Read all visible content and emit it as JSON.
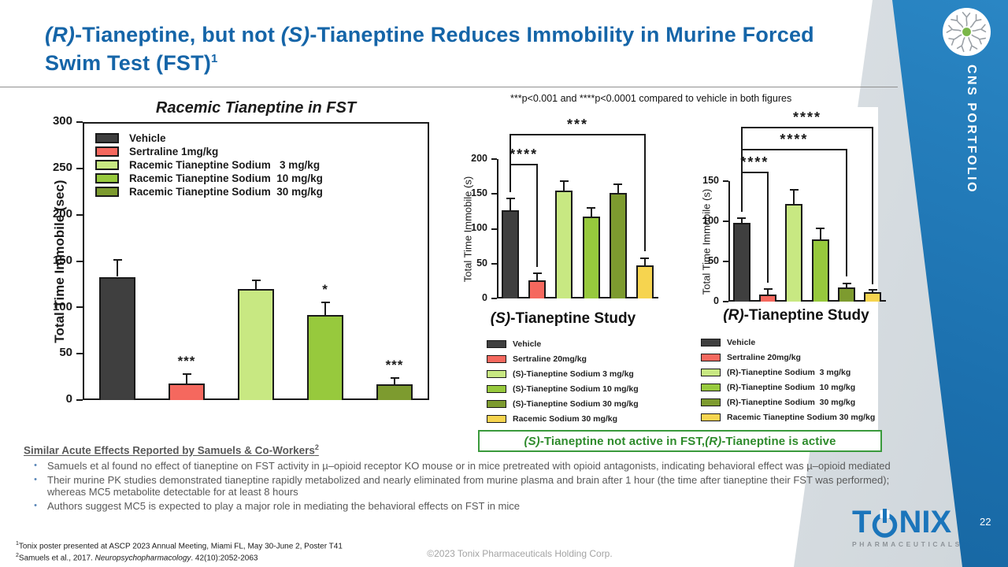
{
  "header": {
    "title_p1": "(R)",
    "title_p2": "-Tianeptine, but not ",
    "title_p3": "(S)",
    "title_p4": "-Tianeptine Reduces Immobility in Murine Forced Swim Test (FST)",
    "title_sup": "1"
  },
  "sidebar": {
    "label": "CNS PORTFOLIO",
    "page": "22"
  },
  "note": "***p<0.001 and ****p<0.0001 compared to vehicle in both figures",
  "conclusion": {
    "p1": "(S)",
    "p2": "-Tianeptine not active in FST, ",
    "p3": "(R)",
    "p4": "-Tianeptine is active"
  },
  "findings": {
    "heading": "Similar Acute Effects Reported by Samuels & Co-Workers",
    "heading_sup": "2",
    "bullets": [
      "Samuels et al found no effect of tianeptine on FST activity in µ–opioid receptor KO mouse or in mice pretreated with opioid antagonists, indicating behavioral effect was µ–opioid mediated",
      "Their murine PK studies demonstrated tianeptine rapidly metabolized and nearly eliminated from murine plasma and brain after 1 hour (the time after tianeptine their FST was performed); whereas MC5 metabolite detectable for at least 8 hours",
      "Authors suggest MC5 is expected to play a major role in mediating the behavioral effects on FST in mice"
    ]
  },
  "footnotes": {
    "sup1": "1",
    "line1": "Tonix poster presented at ASCP 2023 Annual Meeting, Miami FL, May 30-June 2, Poster T41",
    "sup2": "2",
    "line2_pre": "Samuels et al., 2017. ",
    "line2_journal": "Neuropsychopharmacology",
    "line2_post": ". 42(10):2052-2063",
    "copyright": "©2023 Tonix Pharmaceuticals Holding Corp."
  },
  "logo": {
    "t": "T",
    "nix": "NIX",
    "sub": "PHARMACEUTICALS"
  },
  "colors": {
    "title_blue": "#1565a8",
    "tonix_blue": "#1b75bb",
    "sidebar_blue": "#1b6fad",
    "conclusion_green": "#2e8b2c",
    "vehicle": "#3f3f3f",
    "sertraline": "#f5685e",
    "dose3": "#c8e882",
    "dose10": "#97c93d",
    "dose30": "#7d9b2f",
    "racemic_yellow": "#f6d44f"
  },
  "chart_data": [
    {
      "type": "bar",
      "title": "Racemic Tianeptine in FST",
      "ylabel": "Total Time Immobile (sec)",
      "ylim": [
        0,
        300
      ],
      "yticks": [
        0,
        50,
        100,
        150,
        200,
        250,
        300
      ],
      "legend_position": "inside top-left",
      "series": [
        {
          "label": "Vehicle",
          "color": "#3f3f3f",
          "value": 133,
          "error": 18,
          "sig": ""
        },
        {
          "label": "Sertraline 1mg/kg",
          "color": "#f5685e",
          "value": 18,
          "error": 10,
          "sig": "***"
        },
        {
          "label": "Racemic Tianeptine Sodium   3 mg/kg",
          "color": "#c8e882",
          "value": 120,
          "error": 9,
          "sig": ""
        },
        {
          "label": "Racemic Tianeptine Sodium  10 mg/kg",
          "color": "#97c93d",
          "value": 92,
          "error": 13,
          "sig": "*"
        },
        {
          "label": "Racemic Tianeptine Sodium  30 mg/kg",
          "color": "#7d9b2f",
          "value": 17,
          "error": 7,
          "sig": "***"
        }
      ]
    },
    {
      "type": "bar",
      "title": "(S)-Tianeptine Study",
      "title_italic": "(S)",
      "title_rest": "-Tianeptine Study",
      "ylabel": "Total Time Immobile (s)",
      "ylim": [
        0,
        200
      ],
      "yticks": [
        0,
        50,
        100,
        150,
        200
      ],
      "legend_position": "below",
      "series": [
        {
          "label": "Vehicle",
          "color": "#3f3f3f",
          "value": 126,
          "error": 17
        },
        {
          "label": "Sertraline 20mg/kg",
          "color": "#f5685e",
          "value": 26,
          "error": 10
        },
        {
          "label": "(S)-Tianeptine Sodium 3 mg/kg",
          "color": "#c8e882",
          "value": 155,
          "error": 13
        },
        {
          "label": "(S)-Tianeptine Sodium 10 mg/kg",
          "color": "#97c93d",
          "value": 117,
          "error": 13
        },
        {
          "label": "(S)-Tianeptine Sodium 30 mg/kg",
          "color": "#7d9b2f",
          "value": 151,
          "error": 13
        },
        {
          "label": "Racemic Sodium 30 mg/kg",
          "color": "#f6d44f",
          "value": 48,
          "error": 10
        }
      ],
      "brackets": [
        {
          "from": 0,
          "to": 1,
          "top": 193,
          "leg_from": 152,
          "leg_to": 45,
          "label": "****"
        },
        {
          "from": 0,
          "to": 5,
          "top": 236,
          "leg_from": 152,
          "leg_to": 68,
          "label": "***"
        }
      ]
    },
    {
      "type": "bar",
      "title": "(R)-Tianeptine Study",
      "title_italic": "(R)",
      "title_rest": "-Tianeptine Study",
      "ylabel": "Total Time Immobile (s)",
      "ylim": [
        0,
        150
      ],
      "yticks": [
        0,
        50,
        100,
        150
      ],
      "legend_position": "below",
      "series": [
        {
          "label": "Vehicle",
          "color": "#3f3f3f",
          "value": 98,
          "error": 6
        },
        {
          "label": "Sertraline 20mg/kg",
          "color": "#f5685e",
          "value": 9,
          "error": 7
        },
        {
          "label": "(R)-Tianeptine Sodium  3 mg/kg",
          "color": "#c8e882",
          "value": 122,
          "error": 17
        },
        {
          "label": "(R)-Tianeptine Sodium  10 mg/kg",
          "color": "#97c93d",
          "value": 77,
          "error": 14
        },
        {
          "label": "(R)-Tianeptine Sodium  30 mg/kg",
          "color": "#7d9b2f",
          "value": 18,
          "error": 5
        },
        {
          "label": "Racemic Tianeptine Sodium 30 mg/kg",
          "color": "#f6d44f",
          "value": 12,
          "error": 3
        }
      ],
      "brackets": [
        {
          "from": 0,
          "to": 1,
          "top": 162,
          "leg_from": 112,
          "leg_to": 24,
          "label": "****"
        },
        {
          "from": 0,
          "to": 4,
          "top": 190,
          "leg_from": 112,
          "leg_to": 31,
          "label": "****"
        },
        {
          "from": 0,
          "to": 5,
          "top": 218,
          "leg_from": 112,
          "leg_to": 22,
          "label": "****"
        }
      ]
    }
  ]
}
